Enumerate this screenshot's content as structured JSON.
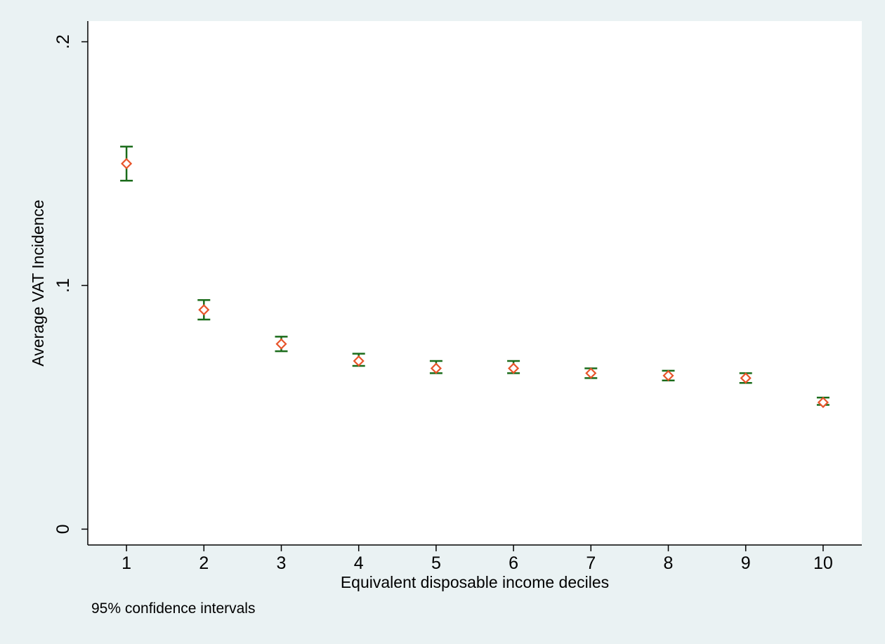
{
  "chart_data": {
    "type": "scatter",
    "title": "",
    "xlabel": "Equivalent disposable income deciles",
    "ylabel": "Average VAT Incidence",
    "note": "95% confidence intervals",
    "x": [
      1,
      2,
      3,
      4,
      5,
      6,
      7,
      8,
      9,
      10
    ],
    "x_tick_labels": [
      "1",
      "2",
      "3",
      "4",
      "5",
      "6",
      "7",
      "8",
      "9",
      "10"
    ],
    "y_ticks": [
      0,
      0.1,
      0.2
    ],
    "y_tick_labels": [
      "0",
      ".1",
      ".2"
    ],
    "xlim": [
      0.5,
      10.5
    ],
    "ylim": [
      -0.0065,
      0.2085
    ],
    "grid": false,
    "series": [
      {
        "values": [
          0.15,
          0.09,
          0.076,
          0.069,
          0.066,
          0.066,
          0.064,
          0.063,
          0.062,
          0.052
        ],
        "ci_low": [
          0.143,
          0.086,
          0.073,
          0.067,
          0.064,
          0.064,
          0.062,
          0.061,
          0.06,
          0.051
        ],
        "ci_high": [
          0.157,
          0.094,
          0.079,
          0.072,
          0.069,
          0.069,
          0.066,
          0.065,
          0.064,
          0.054
        ]
      }
    ],
    "colors": {
      "background": "#eaf2f3",
      "plot_area": "#ffffff",
      "marker": "#e8542a",
      "error_bar": "#1a6b1a",
      "axis": "#000000"
    },
    "marker_shape": "diamond-hollow"
  }
}
